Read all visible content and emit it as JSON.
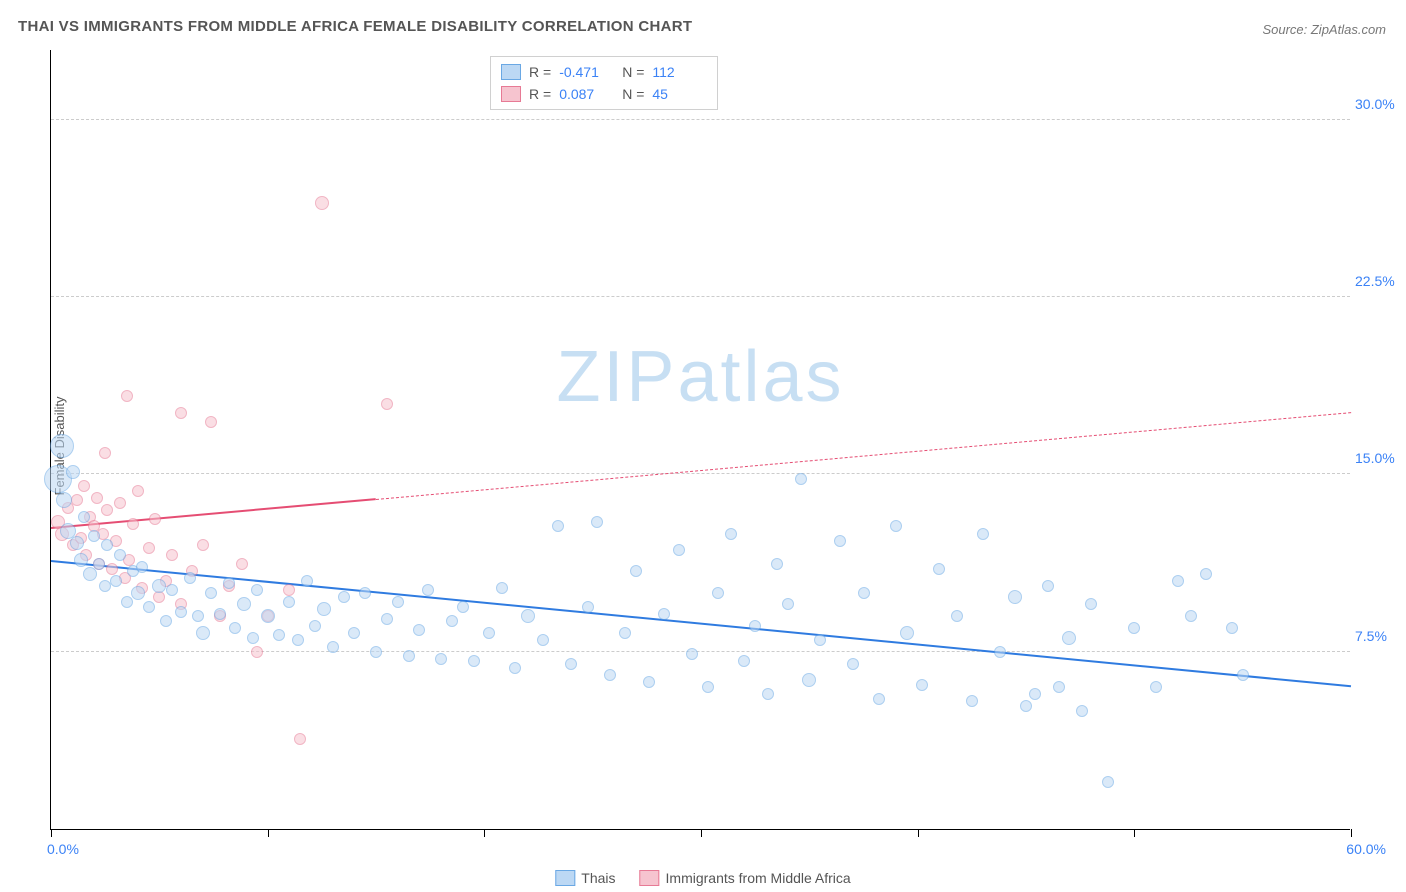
{
  "title": "THAI VS IMMIGRANTS FROM MIDDLE AFRICA FEMALE DISABILITY CORRELATION CHART",
  "source": "Source: ZipAtlas.com",
  "ylabel": "Female Disability",
  "watermark": {
    "bold": "ZIP",
    "thin": "atlas",
    "color": "#c7dff3"
  },
  "chart": {
    "type": "scatter",
    "xlim": [
      0,
      60
    ],
    "ylim": [
      0,
      33
    ],
    "x_unit": "%",
    "y_unit": "%",
    "yticks": [
      7.5,
      15.0,
      22.5,
      30.0
    ],
    "ytick_labels": [
      "7.5%",
      "15.0%",
      "22.5%",
      "30.0%"
    ],
    "xticks": [
      0,
      10,
      20,
      30,
      40,
      50,
      60
    ],
    "xtick_labels": {
      "start": "0.0%",
      "end": "60.0%"
    },
    "background": "#ffffff",
    "axis_color": "#000000",
    "grid_color": "#cccccc",
    "tick_label_color": "#3b82f6",
    "series": [
      {
        "name": "Thais",
        "fill": "#bcd8f4",
        "stroke": "#6aa8e4",
        "fill_opacity": 0.55,
        "marker_radius_range": [
          5,
          14
        ],
        "trend": {
          "x1": 0,
          "y1": 11.3,
          "x2": 60,
          "y2": 6.0,
          "solid_until_x": 60,
          "color": "#2f7be0",
          "width": 2.5
        },
        "R": "-0.471",
        "N": "112",
        "points": [
          [
            0.3,
            14.8,
            14
          ],
          [
            0.5,
            16.2,
            12
          ],
          [
            0.6,
            13.9,
            8
          ],
          [
            0.8,
            12.6,
            8
          ],
          [
            1.0,
            15.1,
            7
          ],
          [
            1.2,
            12.1,
            7
          ],
          [
            1.4,
            11.4,
            7
          ],
          [
            1.5,
            13.2,
            6
          ],
          [
            1.8,
            10.8,
            7
          ],
          [
            2.0,
            12.4,
            6
          ],
          [
            2.2,
            11.2,
            6
          ],
          [
            2.5,
            10.3,
            6
          ],
          [
            2.6,
            12.0,
            6
          ],
          [
            3.0,
            10.5,
            6
          ],
          [
            3.2,
            11.6,
            6
          ],
          [
            3.5,
            9.6,
            6
          ],
          [
            3.8,
            10.9,
            6
          ],
          [
            4.0,
            10.0,
            7
          ],
          [
            4.2,
            11.1,
            6
          ],
          [
            4.5,
            9.4,
            6
          ],
          [
            5.0,
            10.3,
            7
          ],
          [
            5.3,
            8.8,
            6
          ],
          [
            5.6,
            10.1,
            6
          ],
          [
            6.0,
            9.2,
            6
          ],
          [
            6.4,
            10.6,
            6
          ],
          [
            6.8,
            9.0,
            6
          ],
          [
            7.0,
            8.3,
            7
          ],
          [
            7.4,
            10.0,
            6
          ],
          [
            7.8,
            9.1,
            6
          ],
          [
            8.2,
            10.4,
            6
          ],
          [
            8.5,
            8.5,
            6
          ],
          [
            8.9,
            9.5,
            7
          ],
          [
            9.3,
            8.1,
            6
          ],
          [
            9.5,
            10.1,
            6
          ],
          [
            10.0,
            9.0,
            7
          ],
          [
            10.5,
            8.2,
            6
          ],
          [
            11.0,
            9.6,
            6
          ],
          [
            11.4,
            8.0,
            6
          ],
          [
            11.8,
            10.5,
            6
          ],
          [
            12.2,
            8.6,
            6
          ],
          [
            12.6,
            9.3,
            7
          ],
          [
            13.0,
            7.7,
            6
          ],
          [
            13.5,
            9.8,
            6
          ],
          [
            14.0,
            8.3,
            6
          ],
          [
            14.5,
            10.0,
            6
          ],
          [
            15.0,
            7.5,
            6
          ],
          [
            15.5,
            8.9,
            6
          ],
          [
            16.0,
            9.6,
            6
          ],
          [
            16.5,
            7.3,
            6
          ],
          [
            17.0,
            8.4,
            6
          ],
          [
            17.4,
            10.1,
            6
          ],
          [
            18.0,
            7.2,
            6
          ],
          [
            18.5,
            8.8,
            6
          ],
          [
            19.0,
            9.4,
            6
          ],
          [
            19.5,
            7.1,
            6
          ],
          [
            20.2,
            8.3,
            6
          ],
          [
            20.8,
            10.2,
            6
          ],
          [
            21.4,
            6.8,
            6
          ],
          [
            22.0,
            9.0,
            7
          ],
          [
            22.7,
            8.0,
            6
          ],
          [
            23.4,
            12.8,
            6
          ],
          [
            24.0,
            7.0,
            6
          ],
          [
            24.8,
            9.4,
            6
          ],
          [
            25.2,
            13.0,
            6
          ],
          [
            25.8,
            6.5,
            6
          ],
          [
            26.5,
            8.3,
            6
          ],
          [
            27.0,
            10.9,
            6
          ],
          [
            27.6,
            6.2,
            6
          ],
          [
            28.3,
            9.1,
            6
          ],
          [
            29.0,
            11.8,
            6
          ],
          [
            29.6,
            7.4,
            6
          ],
          [
            30.3,
            6.0,
            6
          ],
          [
            30.8,
            10.0,
            6
          ],
          [
            31.4,
            12.5,
            6
          ],
          [
            32.0,
            7.1,
            6
          ],
          [
            32.5,
            8.6,
            6
          ],
          [
            33.1,
            5.7,
            6
          ],
          [
            33.5,
            11.2,
            6
          ],
          [
            34.0,
            9.5,
            6
          ],
          [
            34.6,
            14.8,
            6
          ],
          [
            35.0,
            6.3,
            7
          ],
          [
            35.5,
            8.0,
            6
          ],
          [
            36.4,
            12.2,
            6
          ],
          [
            37.0,
            7.0,
            6
          ],
          [
            37.5,
            10.0,
            6
          ],
          [
            38.2,
            5.5,
            6
          ],
          [
            39.0,
            12.8,
            6
          ],
          [
            39.5,
            8.3,
            7
          ],
          [
            40.2,
            6.1,
            6
          ],
          [
            41.0,
            11.0,
            6
          ],
          [
            41.8,
            9.0,
            6
          ],
          [
            42.5,
            5.4,
            6
          ],
          [
            43.0,
            12.5,
            6
          ],
          [
            43.8,
            7.5,
            6
          ],
          [
            44.5,
            9.8,
            7
          ],
          [
            45.0,
            5.2,
            6
          ],
          [
            45.4,
            5.7,
            6
          ],
          [
            46.0,
            10.3,
            6
          ],
          [
            46.5,
            6.0,
            6
          ],
          [
            47.0,
            8.1,
            7
          ],
          [
            47.6,
            5.0,
            6
          ],
          [
            48.0,
            9.5,
            6
          ],
          [
            48.8,
            2.0,
            6
          ],
          [
            50.0,
            8.5,
            6
          ],
          [
            51.0,
            6.0,
            6
          ],
          [
            52.0,
            10.5,
            6
          ],
          [
            52.6,
            9.0,
            6
          ],
          [
            53.3,
            10.8,
            6
          ],
          [
            55.0,
            6.5,
            6
          ],
          [
            54.5,
            8.5,
            6
          ]
        ]
      },
      {
        "name": "Immigrants from Middle Africa",
        "fill": "#f6c4cf",
        "stroke": "#e77a95",
        "fill_opacity": 0.55,
        "marker_radius_range": [
          5,
          10
        ],
        "trend": {
          "x1": 0,
          "y1": 12.7,
          "x2": 60,
          "y2": 17.6,
          "solid_until_x": 15,
          "color": "#e54d73",
          "width": 2
        },
        "R": "0.087",
        "N": "45",
        "points": [
          [
            0.3,
            13.0,
            7
          ],
          [
            0.5,
            12.5,
            7
          ],
          [
            0.8,
            13.6,
            6
          ],
          [
            1.0,
            12.0,
            6
          ],
          [
            1.2,
            13.9,
            6
          ],
          [
            1.4,
            12.3,
            6
          ],
          [
            1.5,
            14.5,
            6
          ],
          [
            1.6,
            11.6,
            6
          ],
          [
            1.8,
            13.2,
            6
          ],
          [
            2.0,
            12.8,
            6
          ],
          [
            2.1,
            14.0,
            6
          ],
          [
            2.2,
            11.2,
            6
          ],
          [
            2.4,
            12.5,
            6
          ],
          [
            2.5,
            15.9,
            6
          ],
          [
            2.6,
            13.5,
            6
          ],
          [
            2.8,
            11.0,
            6
          ],
          [
            3.0,
            12.2,
            6
          ],
          [
            3.2,
            13.8,
            6
          ],
          [
            3.4,
            10.6,
            6
          ],
          [
            3.5,
            18.3,
            6
          ],
          [
            3.6,
            11.4,
            6
          ],
          [
            3.8,
            12.9,
            6
          ],
          [
            4.0,
            14.3,
            6
          ],
          [
            4.2,
            10.2,
            6
          ],
          [
            4.5,
            11.9,
            6
          ],
          [
            4.8,
            13.1,
            6
          ],
          [
            5.0,
            9.8,
            6
          ],
          [
            5.3,
            10.5,
            6
          ],
          [
            5.6,
            11.6,
            6
          ],
          [
            6.0,
            17.6,
            6
          ],
          [
            6.0,
            9.5,
            6
          ],
          [
            6.5,
            10.9,
            6
          ],
          [
            7.0,
            12.0,
            6
          ],
          [
            7.4,
            17.2,
            6
          ],
          [
            7.8,
            9.0,
            6
          ],
          [
            8.2,
            10.3,
            6
          ],
          [
            8.8,
            11.2,
            6
          ],
          [
            9.5,
            7.5,
            6
          ],
          [
            10.0,
            9.0,
            6
          ],
          [
            11.0,
            10.1,
            6
          ],
          [
            11.5,
            3.8,
            6
          ],
          [
            12.5,
            26.5,
            7
          ],
          [
            15.5,
            18.0,
            6
          ]
        ]
      }
    ]
  },
  "legend_top": {
    "rows": [
      {
        "swatch_fill": "#bcd8f4",
        "swatch_stroke": "#6aa8e4",
        "R": "-0.471",
        "N": "112"
      },
      {
        "swatch_fill": "#f6c4cf",
        "swatch_stroke": "#e77a95",
        "R": "0.087",
        "N": "45"
      }
    ]
  },
  "legend_bottom": {
    "items": [
      {
        "swatch_fill": "#bcd8f4",
        "swatch_stroke": "#6aa8e4",
        "label": "Thais"
      },
      {
        "swatch_fill": "#f6c4cf",
        "swatch_stroke": "#e77a95",
        "label": "Immigrants from Middle Africa"
      }
    ]
  }
}
